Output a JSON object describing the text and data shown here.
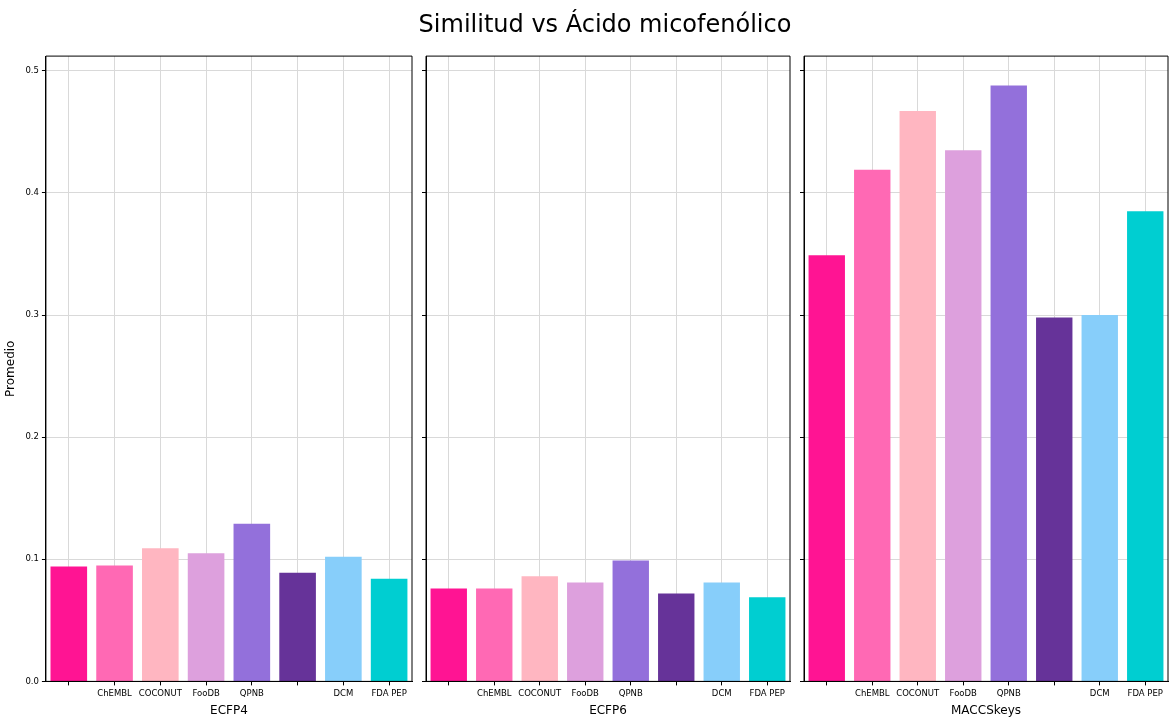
{
  "chart_data": [
    {
      "type": "bar",
      "xlabel": "ECFP4",
      "ylabel": "Promedio",
      "categories": [
        null,
        "ChEMBL",
        "COCONUT",
        "FooDB",
        "QPNB",
        null,
        "DCM",
        "FDA PEP"
      ],
      "values": [
        0.094,
        0.095,
        0.109,
        0.105,
        0.129,
        0.089,
        0.102,
        0.084
      ],
      "colors": [
        "#ff1493",
        "#ff69b4",
        "#ffb6c1",
        "#dda0dd",
        "#9370db",
        "#663399",
        "#87cefa",
        "#00ced1"
      ],
      "ylim": [
        0,
        0.512
      ],
      "yticks": [
        {
          "value": 0,
          "label": "0.0"
        },
        {
          "value": 0.1,
          "label": "0.1"
        },
        {
          "value": 0.2,
          "label": "0.2"
        },
        {
          "value": 0.3,
          "label": "0.3"
        },
        {
          "value": 0.4,
          "label": "0.4"
        },
        {
          "value": 0.5,
          "label": "0.5"
        }
      ],
      "grid": true,
      "legend": false
    },
    {
      "type": "bar",
      "title": "Similitud vs Ácido micofenólico",
      "xlabel": "ECFP6",
      "categories": [
        null,
        "ChEMBL",
        "COCONUT",
        "FooDB",
        "QPNB",
        null,
        "DCM",
        "FDA PEP"
      ],
      "values": [
        0.076,
        0.076,
        0.086,
        0.081,
        0.099,
        0.072,
        0.081,
        0.069
      ],
      "colors": [
        "#ff1493",
        "#ff69b4",
        "#ffb6c1",
        "#dda0dd",
        "#9370db",
        "#663399",
        "#87cefa",
        "#00ced1"
      ],
      "ylim": [
        0,
        0.512
      ],
      "yticks": [
        0,
        0.1,
        0.2,
        0.3,
        0.4,
        0.5
      ],
      "grid": true,
      "legend": false,
      "tick_labels": "x"
    },
    {
      "type": "bar",
      "xlabel": "MACCSkeys",
      "categories": [
        null,
        "ChEMBL",
        "COCONUT",
        "FooDB",
        "QPNB",
        null,
        "DCM",
        "FDA PEP"
      ],
      "values": [
        0.349,
        0.419,
        0.467,
        0.435,
        0.488,
        0.298,
        0.3,
        0.385
      ],
      "colors": [
        "#ff1493",
        "#ff69b4",
        "#ffb6c1",
        "#dda0dd",
        "#9370db",
        "#663399",
        "#87cefa",
        "#00ced1"
      ],
      "ylim": [
        0,
        0.512
      ],
      "yticks": [
        0,
        0.1,
        0.2,
        0.3,
        0.4,
        0.5
      ],
      "grid": true,
      "legend": false,
      "tick_labels": "x"
    }
  ]
}
